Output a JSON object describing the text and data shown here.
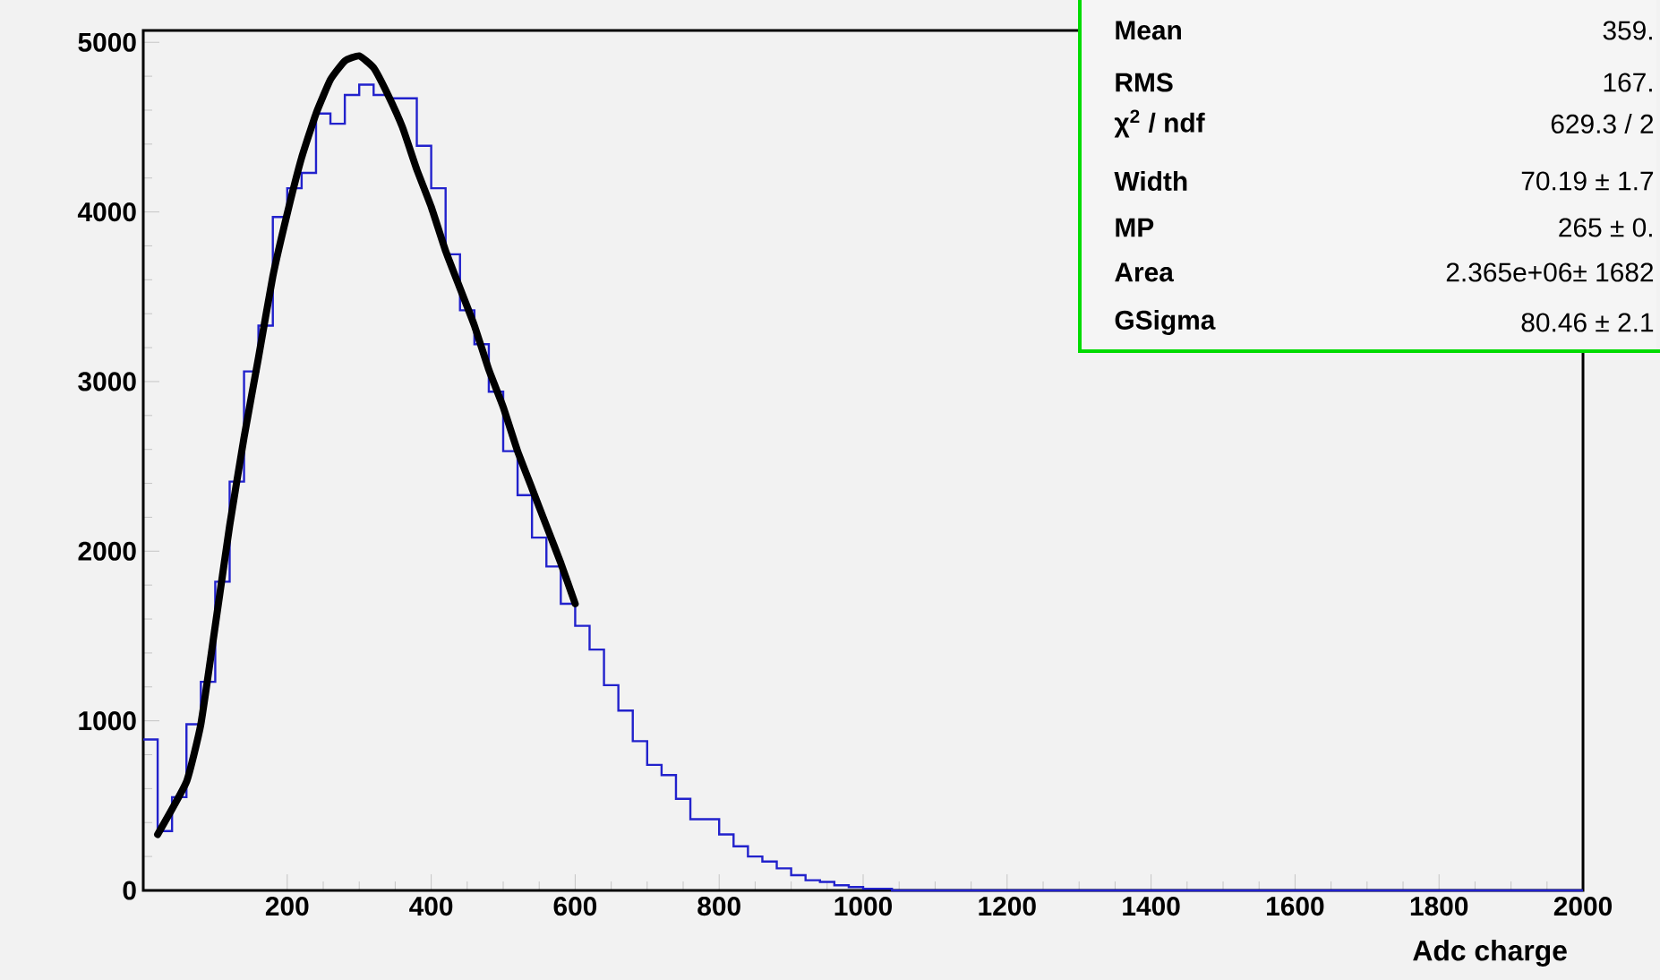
{
  "chart_data": {
    "type": "histogram",
    "xlabel": "Adc charge",
    "xlim": [
      0,
      2000
    ],
    "ylim": [
      0,
      5070
    ],
    "xticks": [
      200,
      400,
      600,
      800,
      1000,
      1200,
      1400,
      1600,
      1800,
      2000
    ],
    "yticks": [
      0,
      1000,
      2000,
      3000,
      4000,
      5000
    ],
    "series": [
      {
        "color": "#2222cc",
        "bins": [
          0,
          20,
          40,
          60,
          80,
          100,
          120,
          140,
          160,
          180,
          200,
          220,
          240,
          260,
          280,
          300,
          320,
          340,
          360,
          380,
          400,
          420,
          440,
          460,
          480,
          500,
          520,
          540,
          560,
          580,
          600,
          620,
          640,
          660,
          680,
          700,
          720,
          740,
          760,
          780,
          800,
          820,
          840,
          860,
          880,
          900,
          920,
          940,
          960,
          980,
          1000,
          1020,
          1040,
          1060,
          1080,
          1100,
          1120,
          1140,
          1160,
          1180,
          1200,
          1220,
          1240,
          1260,
          1280,
          1300,
          1320,
          1340,
          1360,
          1380,
          1400,
          1420,
          1440,
          1460,
          1480,
          1500,
          1520,
          1540,
          1560,
          1580,
          1600,
          1620,
          1640,
          1660,
          1680,
          1700,
          1720,
          1740,
          1760,
          1780,
          1800,
          1820,
          1840,
          1860,
          1880,
          1900,
          1920,
          1940,
          1960,
          1980,
          2000
        ],
        "values": [
          890,
          350,
          550,
          980,
          1230,
          1820,
          2410,
          3060,
          3330,
          3970,
          4140,
          4230,
          4580,
          4520,
          4690,
          4750,
          4690,
          4670,
          4670,
          4390,
          4140,
          3750,
          3420,
          3220,
          2940,
          2590,
          2330,
          2080,
          1910,
          1690,
          1560,
          1420,
          1210,
          1060,
          880,
          740,
          680,
          540,
          420,
          420,
          330,
          260,
          200,
          170,
          130,
          90,
          60,
          50,
          30,
          20,
          10,
          10,
          0,
          0,
          0,
          0,
          0,
          0,
          0,
          0,
          0,
          0,
          0,
          0,
          0,
          0,
          0,
          0,
          0,
          0,
          0,
          0,
          0,
          0,
          0,
          0,
          0,
          0,
          0,
          0,
          0,
          0,
          0,
          0,
          0,
          0,
          0,
          0,
          0,
          0,
          0,
          0,
          0,
          0,
          0,
          0,
          0,
          0,
          0,
          0
        ]
      },
      {
        "type": "line",
        "color": "#000000",
        "x": [
          20,
          60,
          80,
          100,
          120,
          140,
          160,
          180,
          200,
          220,
          240,
          260,
          280,
          300,
          320,
          340,
          360,
          380,
          400,
          420,
          440,
          460,
          480,
          500,
          520,
          540,
          560,
          580,
          600
        ],
        "values": [
          330,
          640,
          980,
          1560,
          2150,
          2670,
          3140,
          3620,
          3990,
          4320,
          4580,
          4780,
          4890,
          4920,
          4850,
          4690,
          4500,
          4250,
          4030,
          3770,
          3550,
          3330,
          3070,
          2850,
          2590,
          2370,
          2150,
          1930,
          1690
        ]
      }
    ],
    "annotations": [
      "Mean",
      "359.",
      "RMS",
      "167.",
      "χ$^{2}$ / ndf",
      "629.3 / 2",
      "Width",
      "70.19 ± 1.7",
      "MP",
      "265 ± 0.",
      "Area",
      "2.365e+06± 1682",
      "GSigma",
      "80.46 ± 2.1"
    ]
  }
}
